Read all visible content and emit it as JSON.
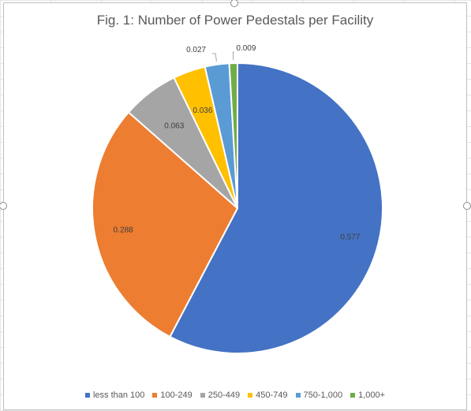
{
  "chart_data": {
    "type": "pie",
    "title": "Fig. 1: Number of Power Pedestals per Facility",
    "legend_position": "bottom",
    "series": [
      {
        "label": "less than 100",
        "value": 0.577,
        "data_label": "0.577",
        "color": "#4472C4"
      },
      {
        "label": "100-249",
        "value": 0.288,
        "data_label": "0.288",
        "color": "#ED7D31"
      },
      {
        "label": "250-449",
        "value": 0.063,
        "data_label": "0.063",
        "color": "#A5A5A5"
      },
      {
        "label": "450-749",
        "value": 0.036,
        "data_label": "0.036",
        "color": "#FFC000"
      },
      {
        "label": "750-1,000",
        "value": 0.027,
        "data_label": "0.027",
        "color": "#5B9BD5"
      },
      {
        "label": "1,000+",
        "value": 0.009,
        "data_label": "0.009",
        "color": "#70AD47"
      }
    ]
  }
}
